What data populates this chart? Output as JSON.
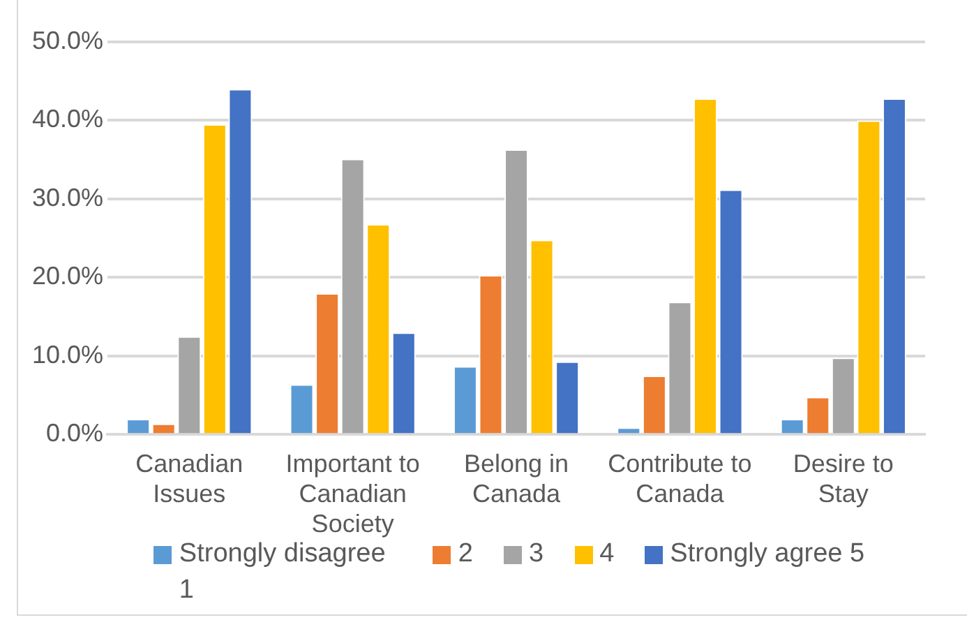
{
  "chart_data": {
    "type": "bar",
    "categories": [
      "Canadian Issues",
      "Important to Canadian Society",
      "Belong in Canada",
      "Contribute to Canada",
      "Desire to Stay"
    ],
    "series": [
      {
        "name": "Strongly disagree 1",
        "color": "#5b9bd5",
        "values": [
          2.0,
          6.4,
          8.7,
          0.9,
          2.0
        ]
      },
      {
        "name": "2",
        "color": "#ed7d31",
        "values": [
          1.4,
          18.0,
          20.3,
          7.5,
          4.8
        ]
      },
      {
        "name": "3",
        "color": "#a5a5a5",
        "values": [
          12.5,
          35.1,
          36.3,
          16.9,
          9.8
        ]
      },
      {
        "name": "4",
        "color": "#ffc000",
        "values": [
          39.5,
          26.8,
          24.8,
          42.8,
          40.0
        ]
      },
      {
        "name": "Strongly agree 5",
        "color": "#4472c4",
        "values": [
          44.0,
          13.0,
          9.3,
          31.2,
          42.8
        ]
      }
    ],
    "ylim": [
      0,
      50
    ],
    "yticks": [
      {
        "value": 0,
        "label": "0.0%"
      },
      {
        "value": 10,
        "label": "10.0%"
      },
      {
        "value": 20,
        "label": "20.0%"
      },
      {
        "value": 30,
        "label": "30.0%"
      },
      {
        "value": 40,
        "label": "40.0%"
      },
      {
        "value": 50,
        "label": "50.0%"
      }
    ],
    "grid": "y",
    "legend": "bottom"
  }
}
